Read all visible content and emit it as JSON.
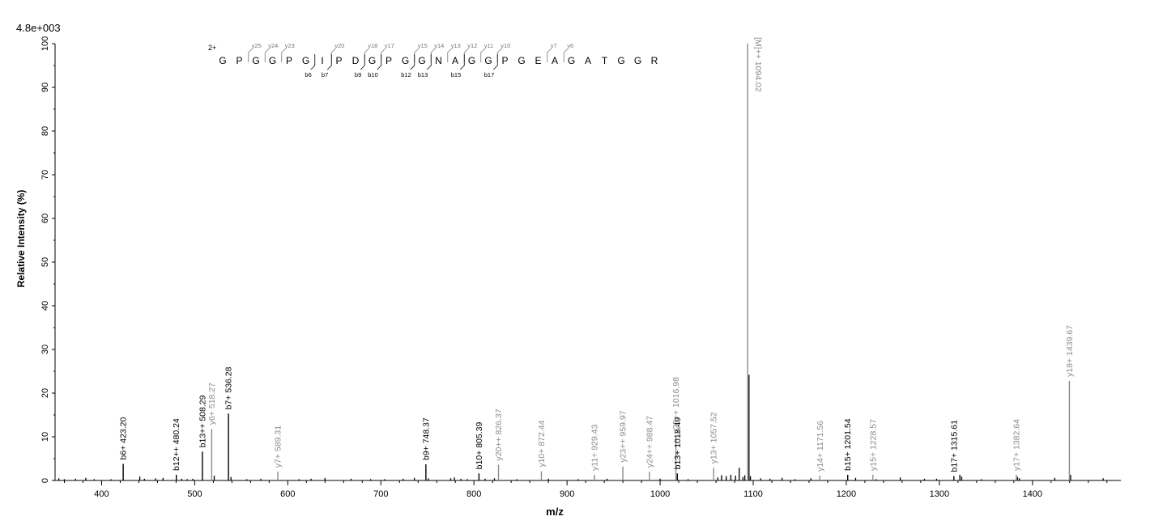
{
  "chart_data": {
    "type": "bar",
    "title": "",
    "scale_label": "4.8e+003",
    "xlabel": "m/z",
    "ylabel": "Relative   Intensity (%)",
    "xlim": [
      350,
      1495
    ],
    "ylim": [
      0,
      100
    ],
    "x_ticks": [
      400,
      500,
      600,
      700,
      800,
      900,
      1000,
      1100,
      1200,
      1300,
      1400
    ],
    "y_ticks": [
      0,
      10,
      20,
      30,
      40,
      50,
      60,
      70,
      80,
      90,
      100
    ],
    "colors": {
      "b_ion": "#000000",
      "y_ion": "#8c8c8c",
      "precursor": "#8c8c8c",
      "noise": "#000000"
    },
    "labeled_peaks": [
      {
        "mz": 423.2,
        "intensity": 3.8,
        "label": "b6+ 423.20",
        "ion": "b"
      },
      {
        "mz": 480.24,
        "intensity": 1.3,
        "label": "b12++ 480.24",
        "ion": "b"
      },
      {
        "mz": 508.29,
        "intensity": 6.6,
        "label": "b13++ 508.29",
        "ion": "b"
      },
      {
        "mz": 518.27,
        "intensity": 11.8,
        "label": "y6+ 518.27",
        "ion": "y"
      },
      {
        "mz": 536.28,
        "intensity": 15.3,
        "label": "b7+ 536.28",
        "ion": "b"
      },
      {
        "mz": 589.31,
        "intensity": 2.0,
        "label": "y7+ 589.31",
        "ion": "y"
      },
      {
        "mz": 748.37,
        "intensity": 3.7,
        "label": "b9+ 748.37",
        "ion": "b"
      },
      {
        "mz": 805.39,
        "intensity": 1.6,
        "label": "b10+ 805.39",
        "ion": "b"
      },
      {
        "mz": 826.37,
        "intensity": 3.6,
        "label": "y20++ 826.37",
        "ion": "y"
      },
      {
        "mz": 872.44,
        "intensity": 2.1,
        "label": "y10+ 872.44",
        "ion": "y"
      },
      {
        "mz": 929.43,
        "intensity": 1.3,
        "label": "y11+ 929.43",
        "ion": "y"
      },
      {
        "mz": 959.97,
        "intensity": 3.2,
        "label": "y23++ 959.97",
        "ion": "y"
      },
      {
        "mz": 988.47,
        "intensity": 2.0,
        "label": "y24++ 988.47",
        "ion": "y"
      },
      {
        "mz": 1016.98,
        "intensity": 9.8,
        "label": "y25++ 1016.98",
        "ion": "y"
      },
      {
        "mz": 1018.49,
        "intensity": 1.6,
        "label": "b13+ 1018.49",
        "ion": "b"
      },
      {
        "mz": 1057.52,
        "intensity": 2.9,
        "label": "y13+ 1057.52",
        "ion": "y"
      },
      {
        "mz": 1094.02,
        "intensity": 100,
        "label": "[M]++ 1094.02",
        "ion": "precursor"
      },
      {
        "mz": 1171.56,
        "intensity": 1.1,
        "label": "y14+ 1171.56",
        "ion": "y"
      },
      {
        "mz": 1201.54,
        "intensity": 1.3,
        "label": "b15+ 1201.54",
        "ion": "b"
      },
      {
        "mz": 1228.57,
        "intensity": 1.3,
        "label": "y15+ 1228.57",
        "ion": "y"
      },
      {
        "mz": 1315.61,
        "intensity": 1.0,
        "label": "b17+ 1315.61",
        "ion": "b"
      },
      {
        "mz": 1382.64,
        "intensity": 1.3,
        "label": "y17+ 1382.64",
        "ion": "y"
      },
      {
        "mz": 1439.67,
        "intensity": 22.8,
        "label": "y18+ 1439.67",
        "ion": "y"
      }
    ],
    "other_peaks": [
      {
        "mz": 354,
        "intensity": 0.5
      },
      {
        "mz": 360,
        "intensity": 0.3
      },
      {
        "mz": 372,
        "intensity": 0.4
      },
      {
        "mz": 383,
        "intensity": 0.6
      },
      {
        "mz": 392,
        "intensity": 0.3
      },
      {
        "mz": 410,
        "intensity": 0.3
      },
      {
        "mz": 441,
        "intensity": 0.9
      },
      {
        "mz": 446,
        "intensity": 0.4
      },
      {
        "mz": 458,
        "intensity": 0.5
      },
      {
        "mz": 466,
        "intensity": 0.6
      },
      {
        "mz": 486,
        "intensity": 0.4
      },
      {
        "mz": 492,
        "intensity": 0.3
      },
      {
        "mz": 498,
        "intensity": 0.4
      },
      {
        "mz": 521,
        "intensity": 1.1
      },
      {
        "mz": 539,
        "intensity": 0.8
      },
      {
        "mz": 556,
        "intensity": 0.3
      },
      {
        "mz": 571,
        "intensity": 0.4
      },
      {
        "mz": 612,
        "intensity": 0.3
      },
      {
        "mz": 625,
        "intensity": 0.4
      },
      {
        "mz": 640,
        "intensity": 0.6
      },
      {
        "mz": 668,
        "intensity": 0.4
      },
      {
        "mz": 689,
        "intensity": 0.3
      },
      {
        "mz": 704,
        "intensity": 0.3
      },
      {
        "mz": 724,
        "intensity": 0.4
      },
      {
        "mz": 736,
        "intensity": 0.6
      },
      {
        "mz": 751,
        "intensity": 0.5
      },
      {
        "mz": 775,
        "intensity": 0.5
      },
      {
        "mz": 779,
        "intensity": 0.7
      },
      {
        "mz": 786,
        "intensity": 0.4
      },
      {
        "mz": 793,
        "intensity": 0.3
      },
      {
        "mz": 812,
        "intensity": 0.4
      },
      {
        "mz": 822,
        "intensity": 0.5
      },
      {
        "mz": 846,
        "intensity": 0.3
      },
      {
        "mz": 880,
        "intensity": 0.4
      },
      {
        "mz": 912,
        "intensity": 0.3
      },
      {
        "mz": 943,
        "intensity": 0.4
      },
      {
        "mz": 1000,
        "intensity": 0.4
      },
      {
        "mz": 1030,
        "intensity": 0.3
      },
      {
        "mz": 1062,
        "intensity": 0.7
      },
      {
        "mz": 1066,
        "intensity": 1.2
      },
      {
        "mz": 1071,
        "intensity": 1.0
      },
      {
        "mz": 1076,
        "intensity": 1.3
      },
      {
        "mz": 1081,
        "intensity": 1.1
      },
      {
        "mz": 1085,
        "intensity": 2.9
      },
      {
        "mz": 1089,
        "intensity": 0.8
      },
      {
        "mz": 1091,
        "intensity": 1.2
      },
      {
        "mz": 1095.5,
        "intensity": 24.2
      },
      {
        "mz": 1097,
        "intensity": 1.0
      },
      {
        "mz": 1108,
        "intensity": 0.5
      },
      {
        "mz": 1118,
        "intensity": 0.4
      },
      {
        "mz": 1131,
        "intensity": 0.6
      },
      {
        "mz": 1145,
        "intensity": 0.3
      },
      {
        "mz": 1162,
        "intensity": 0.5
      },
      {
        "mz": 1210,
        "intensity": 0.6
      },
      {
        "mz": 1232,
        "intensity": 0.3
      },
      {
        "mz": 1258,
        "intensity": 0.7
      },
      {
        "mz": 1284,
        "intensity": 0.4
      },
      {
        "mz": 1297,
        "intensity": 0.4
      },
      {
        "mz": 1322,
        "intensity": 1.3
      },
      {
        "mz": 1324,
        "intensity": 0.9
      },
      {
        "mz": 1345,
        "intensity": 0.3
      },
      {
        "mz": 1384,
        "intensity": 0.8
      },
      {
        "mz": 1386,
        "intensity": 0.5
      },
      {
        "mz": 1424,
        "intensity": 0.6
      },
      {
        "mz": 1441,
        "intensity": 1.3
      },
      {
        "mz": 1476,
        "intensity": 0.5
      }
    ]
  },
  "sequence": {
    "charge": "2+",
    "residues": [
      "G",
      "P",
      "G",
      "G",
      "P",
      "G",
      "I",
      "P",
      "D",
      "G",
      "P",
      "G",
      "G",
      "N",
      "A",
      "G",
      "G",
      "P",
      "G",
      "E",
      "A",
      "G",
      "A",
      "T",
      "G",
      "G",
      "R"
    ],
    "y_marks": [
      {
        "after": 2,
        "label": "y25"
      },
      {
        "after": 3,
        "label": "y24"
      },
      {
        "after": 4,
        "label": "y23"
      },
      {
        "after": 7,
        "label": "y20"
      },
      {
        "after": 9,
        "label": "y18"
      },
      {
        "after": 10,
        "label": "y17"
      },
      {
        "after": 12,
        "label": "y15"
      },
      {
        "after": 13,
        "label": "y14"
      },
      {
        "after": 14,
        "label": "y13"
      },
      {
        "after": 15,
        "label": "y12"
      },
      {
        "after": 16,
        "label": "y11"
      },
      {
        "after": 17,
        "label": "y10"
      },
      {
        "after": 20,
        "label": "y7"
      },
      {
        "after": 21,
        "label": "y6"
      }
    ],
    "b_marks": [
      {
        "after": 6,
        "label": "b6"
      },
      {
        "after": 7,
        "label": "b7"
      },
      {
        "after": 9,
        "label": "b9"
      },
      {
        "after": 10,
        "label": "b10"
      },
      {
        "after": 12,
        "label": "b12"
      },
      {
        "after": 13,
        "label": "b13"
      },
      {
        "after": 15,
        "label": "b15"
      },
      {
        "after": 17,
        "label": "b17"
      }
    ]
  }
}
